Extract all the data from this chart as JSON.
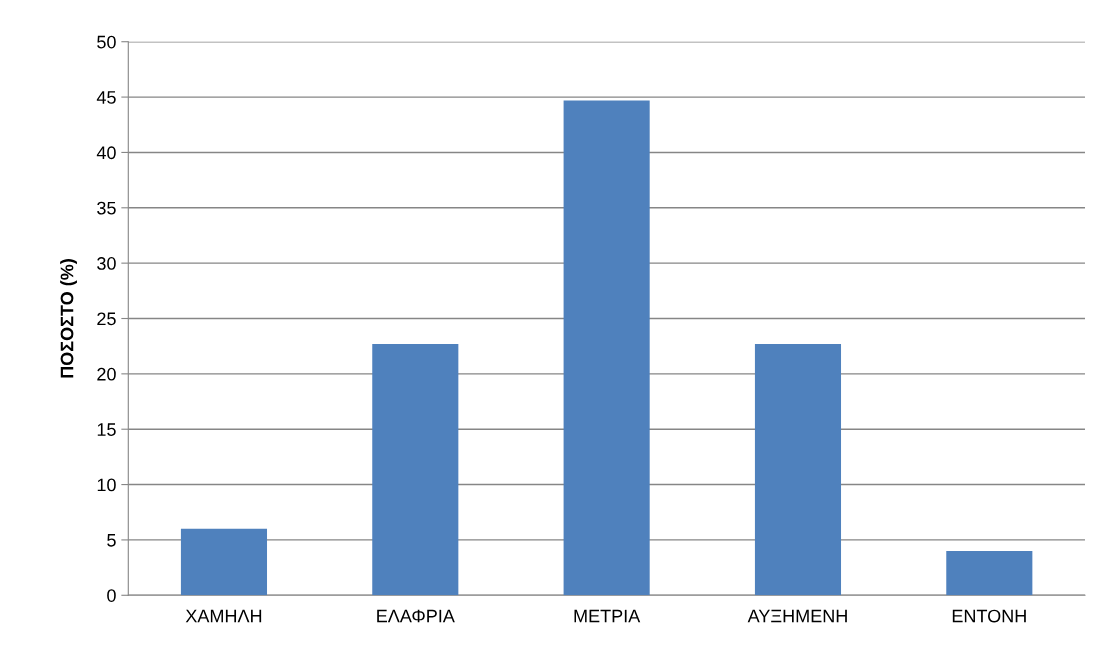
{
  "chart_data": {
    "type": "bar",
    "ylabel": "ΠΟΣΟΣΤΟ (%)",
    "categories": [
      "ΧΑΜΗΛΗ",
      "ΕΛΑΦΡΙΑ",
      "ΜΕΤΡΙΑ",
      "ΑΥΞΗΜΕΝΗ",
      "ΕΝΤΟΝΗ"
    ],
    "values": [
      6,
      22.7,
      44.7,
      22.7,
      4
    ],
    "color": "#4f81bd",
    "ylim": [
      0,
      50
    ],
    "yticks": [
      0,
      5,
      10,
      15,
      20,
      25,
      30,
      35,
      40,
      45,
      50
    ],
    "grid": "y"
  }
}
